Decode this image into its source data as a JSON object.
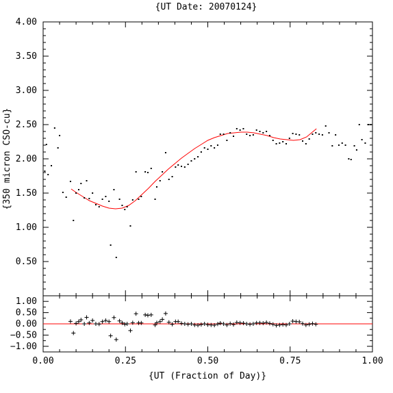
{
  "chart_data": [
    {
      "type": "scatter",
      "title": "{UT Date: 20070124}",
      "xlabel": "",
      "ylabel": "{350 micron CSO-cu}",
      "xlim": [
        0,
        1
      ],
      "ylim": [
        0,
        4
      ],
      "x_ticks": [
        "0.00",
        "0.25",
        "0.50",
        "0.75",
        "1.00"
      ],
      "y_ticks": [
        "0.50",
        "1.00",
        "1.50",
        "2.00",
        "2.50",
        "3.00",
        "3.50",
        "4.00"
      ],
      "grid": false,
      "series": [
        {
          "role": "points",
          "color": "#000000",
          "points": [
            [
              0.005,
              1.82
            ],
            [
              0.01,
              2.21
            ],
            [
              0.015,
              1.77
            ],
            [
              0.025,
              1.9
            ],
            [
              0.035,
              2.45
            ],
            [
              0.045,
              2.16
            ],
            [
              0.05,
              2.34
            ],
            [
              0.06,
              1.51
            ],
            [
              0.07,
              1.44
            ],
            [
              0.083,
              1.67
            ],
            [
              0.092,
              1.1
            ],
            [
              0.1,
              1.5
            ],
            [
              0.108,
              1.55
            ],
            [
              0.115,
              1.64
            ],
            [
              0.125,
              1.43
            ],
            [
              0.132,
              1.68
            ],
            [
              0.14,
              1.42
            ],
            [
              0.15,
              1.5
            ],
            [
              0.16,
              1.33
            ],
            [
              0.17,
              1.3
            ],
            [
              0.18,
              1.41
            ],
            [
              0.19,
              1.45
            ],
            [
              0.2,
              1.38
            ],
            [
              0.205,
              0.74
            ],
            [
              0.215,
              1.55
            ],
            [
              0.222,
              0.56
            ],
            [
              0.232,
              1.41
            ],
            [
              0.24,
              1.32
            ],
            [
              0.248,
              1.26
            ],
            [
              0.255,
              1.3
            ],
            [
              0.265,
              1.02
            ],
            [
              0.272,
              1.4
            ],
            [
              0.282,
              1.81
            ],
            [
              0.29,
              1.41
            ],
            [
              0.298,
              1.45
            ],
            [
              0.31,
              1.81
            ],
            [
              0.318,
              1.8
            ],
            [
              0.328,
              1.86
            ],
            [
              0.34,
              1.41
            ],
            [
              0.345,
              1.59
            ],
            [
              0.355,
              1.68
            ],
            [
              0.362,
              1.81
            ],
            [
              0.372,
              2.09
            ],
            [
              0.382,
              1.7
            ],
            [
              0.392,
              1.74
            ],
            [
              0.402,
              1.88
            ],
            [
              0.41,
              1.91
            ],
            [
              0.42,
              1.89
            ],
            [
              0.43,
              1.88
            ],
            [
              0.44,
              1.92
            ],
            [
              0.45,
              1.97
            ],
            [
              0.46,
              2.0
            ],
            [
              0.47,
              2.03
            ],
            [
              0.48,
              2.1
            ],
            [
              0.49,
              2.16
            ],
            [
              0.5,
              2.14
            ],
            [
              0.51,
              2.19
            ],
            [
              0.52,
              2.16
            ],
            [
              0.53,
              2.2
            ],
            [
              0.538,
              2.36
            ],
            [
              0.548,
              2.36
            ],
            [
              0.558,
              2.27
            ],
            [
              0.568,
              2.38
            ],
            [
              0.578,
              2.33
            ],
            [
              0.588,
              2.44
            ],
            [
              0.598,
              2.42
            ],
            [
              0.608,
              2.44
            ],
            [
              0.618,
              2.36
            ],
            [
              0.628,
              2.34
            ],
            [
              0.638,
              2.35
            ],
            [
              0.648,
              2.42
            ],
            [
              0.658,
              2.4
            ],
            [
              0.668,
              2.38
            ],
            [
              0.678,
              2.4
            ],
            [
              0.688,
              2.34
            ],
            [
              0.698,
              2.27
            ],
            [
              0.708,
              2.22
            ],
            [
              0.718,
              2.23
            ],
            [
              0.728,
              2.25
            ],
            [
              0.738,
              2.22
            ],
            [
              0.748,
              2.3
            ],
            [
              0.758,
              2.37
            ],
            [
              0.768,
              2.36
            ],
            [
              0.778,
              2.35
            ],
            [
              0.788,
              2.26
            ],
            [
              0.798,
              2.22
            ],
            [
              0.808,
              2.29
            ],
            [
              0.818,
              2.36
            ],
            [
              0.828,
              2.38
            ],
            [
              0.838,
              2.36
            ],
            [
              0.848,
              2.35
            ],
            [
              0.858,
              2.48
            ],
            [
              0.868,
              2.38
            ],
            [
              0.878,
              2.19
            ],
            [
              0.888,
              2.35
            ],
            [
              0.898,
              2.2
            ],
            [
              0.908,
              2.23
            ],
            [
              0.918,
              2.2
            ],
            [
              0.928,
              2.0
            ],
            [
              0.935,
              1.99
            ],
            [
              0.945,
              2.19
            ],
            [
              0.952,
              2.13
            ],
            [
              0.96,
              2.5
            ],
            [
              0.968,
              2.28
            ],
            [
              0.978,
              2.23
            ],
            [
              0.988,
              2.5
            ],
            [
              0.995,
              2.5
            ]
          ]
        },
        {
          "role": "fit",
          "color": "#ff0000",
          "points": [
            [
              0.085,
              1.56
            ],
            [
              0.1,
              1.51
            ],
            [
              0.12,
              1.45
            ],
            [
              0.14,
              1.39
            ],
            [
              0.16,
              1.35
            ],
            [
              0.18,
              1.31
            ],
            [
              0.2,
              1.28
            ],
            [
              0.22,
              1.27
            ],
            [
              0.24,
              1.28
            ],
            [
              0.26,
              1.32
            ],
            [
              0.28,
              1.39
            ],
            [
              0.3,
              1.48
            ],
            [
              0.32,
              1.57
            ],
            [
              0.34,
              1.67
            ],
            [
              0.36,
              1.76
            ],
            [
              0.38,
              1.85
            ],
            [
              0.4,
              1.93
            ],
            [
              0.42,
              2.01
            ],
            [
              0.44,
              2.08
            ],
            [
              0.46,
              2.15
            ],
            [
              0.48,
              2.21
            ],
            [
              0.5,
              2.27
            ],
            [
              0.52,
              2.31
            ],
            [
              0.54,
              2.34
            ],
            [
              0.56,
              2.37
            ],
            [
              0.58,
              2.38
            ],
            [
              0.6,
              2.39
            ],
            [
              0.62,
              2.39
            ],
            [
              0.64,
              2.38
            ],
            [
              0.66,
              2.36
            ],
            [
              0.68,
              2.34
            ],
            [
              0.7,
              2.31
            ],
            [
              0.72,
              2.29
            ],
            [
              0.74,
              2.28
            ],
            [
              0.76,
              2.27
            ],
            [
              0.78,
              2.28
            ],
            [
              0.8,
              2.32
            ],
            [
              0.82,
              2.4
            ],
            [
              0.83,
              2.44
            ]
          ]
        }
      ]
    },
    {
      "type": "scatter",
      "title": "",
      "xlabel": "{UT (Fraction of Day)}",
      "ylabel": "",
      "xlim": [
        0,
        1
      ],
      "ylim": [
        -1.25,
        1.25
      ],
      "x_ticks": [
        "0.00",
        "0.25",
        "0.50",
        "0.75",
        "1.00"
      ],
      "y_ticks": [
        "1.00",
        "0.50",
        "0.00",
        "−0.50",
        "−1.00"
      ],
      "grid": false,
      "series": [
        {
          "role": "residuals",
          "color": "#000000",
          "points": [
            [
              0.083,
              0.11
            ],
            [
              0.092,
              -0.41
            ],
            [
              0.1,
              0.02
            ],
            [
              0.108,
              0.1
            ],
            [
              0.115,
              0.18
            ],
            [
              0.125,
              0.0
            ],
            [
              0.132,
              0.29
            ],
            [
              0.14,
              0.04
            ],
            [
              0.15,
              0.15
            ],
            [
              0.16,
              0.0
            ],
            [
              0.17,
              -0.01
            ],
            [
              0.18,
              0.1
            ],
            [
              0.19,
              0.15
            ],
            [
              0.2,
              0.1
            ],
            [
              0.205,
              -0.53
            ],
            [
              0.215,
              0.28
            ],
            [
              0.222,
              -0.7
            ],
            [
              0.232,
              0.13
            ],
            [
              0.24,
              0.04
            ],
            [
              0.248,
              -0.02
            ],
            [
              0.255,
              0.0
            ],
            [
              0.265,
              -0.3
            ],
            [
              0.272,
              0.05
            ],
            [
              0.282,
              0.45
            ],
            [
              0.29,
              0.04
            ],
            [
              0.298,
              0.04
            ],
            [
              0.31,
              0.4
            ],
            [
              0.318,
              0.38
            ],
            [
              0.328,
              0.4
            ],
            [
              0.34,
              -0.05
            ],
            [
              0.345,
              0.05
            ],
            [
              0.355,
              0.1
            ],
            [
              0.362,
              0.2
            ],
            [
              0.372,
              0.46
            ],
            [
              0.382,
              0.07
            ],
            [
              0.392,
              -0.02
            ],
            [
              0.402,
              0.1
            ],
            [
              0.41,
              0.1
            ],
            [
              0.42,
              0.02
            ],
            [
              0.43,
              0.0
            ],
            [
              0.44,
              -0.02
            ],
            [
              0.45,
              0.0
            ],
            [
              0.46,
              -0.05
            ],
            [
              0.47,
              -0.06
            ],
            [
              0.48,
              -0.03
            ],
            [
              0.49,
              0.0
            ],
            [
              0.5,
              -0.04
            ],
            [
              0.51,
              -0.05
            ],
            [
              0.52,
              -0.06
            ],
            [
              0.53,
              -0.01
            ],
            [
              0.538,
              0.03
            ],
            [
              0.548,
              0.0
            ],
            [
              0.558,
              -0.05
            ],
            [
              0.568,
              0.01
            ],
            [
              0.578,
              -0.03
            ],
            [
              0.588,
              0.06
            ],
            [
              0.598,
              0.04
            ],
            [
              0.608,
              0.03
            ],
            [
              0.618,
              0.0
            ],
            [
              0.628,
              -0.02
            ],
            [
              0.638,
              0.0
            ],
            [
              0.648,
              0.04
            ],
            [
              0.658,
              0.04
            ],
            [
              0.668,
              0.03
            ],
            [
              0.678,
              0.06
            ],
            [
              0.688,
              0.02
            ],
            [
              0.698,
              -0.02
            ],
            [
              0.708,
              -0.07
            ],
            [
              0.718,
              -0.05
            ],
            [
              0.728,
              -0.03
            ],
            [
              0.738,
              -0.05
            ],
            [
              0.748,
              0.0
            ],
            [
              0.758,
              0.12
            ],
            [
              0.768,
              0.1
            ],
            [
              0.778,
              0.09
            ],
            [
              0.788,
              0.01
            ],
            [
              0.798,
              -0.05
            ],
            [
              0.808,
              -0.02
            ],
            [
              0.818,
              0.01
            ],
            [
              0.828,
              -0.02
            ]
          ]
        },
        {
          "role": "zero-line",
          "color": "#ff0000",
          "points": [
            [
              0,
              0
            ],
            [
              1,
              0
            ]
          ]
        }
      ]
    }
  ]
}
